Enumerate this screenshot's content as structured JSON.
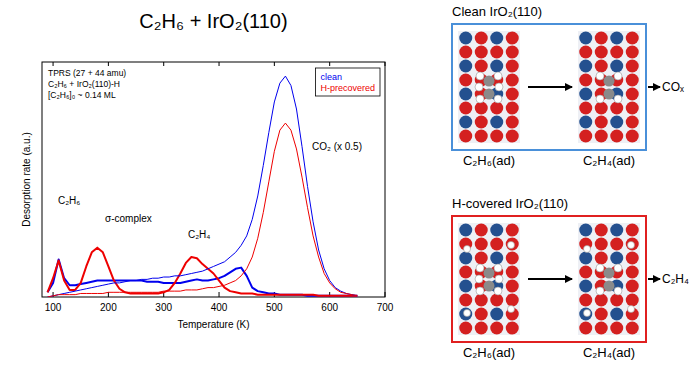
{
  "chart_data": {
    "type": "line",
    "title": "C₂H₆ + IrO₂(110)",
    "x_label": "Temperature (K)",
    "y_label": "Desorption rate (a.u.)",
    "xlim": [
      80,
      700
    ],
    "ylim": [
      0,
      100
    ],
    "xticks": [
      100,
      200,
      300,
      400,
      500,
      600,
      700
    ],
    "tick_labels": "x",
    "grid": false,
    "legend": "upper right",
    "annotations": [
      "TPRS (27 + 44 amu)",
      "C₂H₆ + IrO₂(110)-H",
      "[C₂H₆]₀ ~ 0.14 ML",
      "C₂H₆",
      "σ-complex",
      "C₂H₄",
      "CO₂ (x 0.5)"
    ],
    "x": [
      90,
      100,
      110,
      120,
      130,
      140,
      150,
      160,
      170,
      180,
      190,
      200,
      210,
      220,
      230,
      240,
      250,
      260,
      270,
      280,
      290,
      300,
      310,
      320,
      330,
      340,
      350,
      360,
      370,
      380,
      390,
      400,
      410,
      420,
      430,
      440,
      450,
      460,
      470,
      480,
      490,
      500,
      510,
      520,
      530,
      540,
      550,
      560,
      570,
      580,
      590,
      600,
      610,
      620,
      630,
      640,
      650
    ],
    "series": [
      {
        "name": "clean",
        "color": "#0000ee",
        "line_style": "thick",
        "values": [
          2,
          6,
          16,
          8,
          5,
          5,
          5.5,
          6,
          6.5,
          7,
          7,
          7,
          7,
          7,
          7,
          7,
          7,
          7,
          6.5,
          6.5,
          6.5,
          6,
          6,
          6,
          6,
          6.5,
          7,
          7.5,
          7,
          7,
          7.5,
          8,
          9,
          10.5,
          12,
          12.5,
          9,
          4,
          2.5,
          2,
          1.5,
          1.5,
          1,
          1,
          1,
          1,
          1,
          0.5,
          0.5,
          0.5,
          0.5,
          0.5,
          0.5,
          0.5,
          0.5,
          0.5,
          0.5
        ]
      },
      {
        "name": "H-precovered",
        "color": "#ee0000",
        "line_style": "thick",
        "values": [
          2,
          8,
          15.5,
          7,
          3,
          3,
          6,
          13,
          19,
          21,
          19,
          13,
          7,
          3.5,
          2,
          1.5,
          1.5,
          1.5,
          1.5,
          1.5,
          1.5,
          2,
          3,
          6,
          10,
          14.5,
          17,
          16.5,
          14,
          12,
          10,
          7,
          4,
          2.5,
          2,
          1.5,
          1.5,
          1.5,
          1,
          1,
          1,
          1,
          1,
          1,
          1,
          1,
          1,
          1,
          1,
          0.5,
          0.5,
          0.5,
          0.5,
          0.5,
          0.5,
          0.5,
          0.5
        ]
      },
      {
        "color": "#0000ee",
        "line_style": "thin",
        "values": [
          0,
          0.5,
          1,
          1.5,
          2,
          2.5,
          3,
          3.5,
          4,
          4.5,
          5,
          5.5,
          6,
          6,
          6.5,
          7,
          7,
          7.5,
          7.5,
          8,
          8,
          8.5,
          8.5,
          9,
          9,
          9.5,
          10,
          10.5,
          11,
          12,
          13,
          14,
          15,
          17,
          19,
          22,
          26,
          33,
          43,
          56,
          70,
          83,
          91,
          94,
          90,
          80,
          64,
          47,
          32,
          20,
          12,
          7,
          4,
          2.5,
          1.5,
          1,
          0.5
        ]
      },
      {
        "color": "#ee0000",
        "line_style": "thin",
        "values": [
          0,
          0.5,
          1,
          1,
          1,
          1,
          1.5,
          1.5,
          1.5,
          1.5,
          1.5,
          2,
          2,
          2,
          2,
          2,
          2,
          2,
          2,
          2,
          2,
          2.5,
          2.5,
          2.5,
          2.5,
          3,
          3,
          3,
          3.5,
          4,
          4,
          4.5,
          5,
          6,
          7,
          9,
          12,
          17,
          25,
          36,
          49,
          62,
          71,
          74,
          71,
          63,
          51,
          38,
          26,
          17,
          10,
          6,
          3.5,
          2,
          1.5,
          1,
          0.5
        ]
      }
    ]
  },
  "schematics": [
    {
      "title": "Clean IrO₂(110)",
      "color": "#4a90d9",
      "from": "C₂H₆(ad)",
      "to": "C₂H₄(ad)",
      "product": "COₓ"
    },
    {
      "title": "H-covered IrO₂(110)",
      "color": "#e02020",
      "from": "C₂H₆(ad)",
      "to": "C₂H₄(ad)",
      "product": "C₂H₄"
    }
  ]
}
